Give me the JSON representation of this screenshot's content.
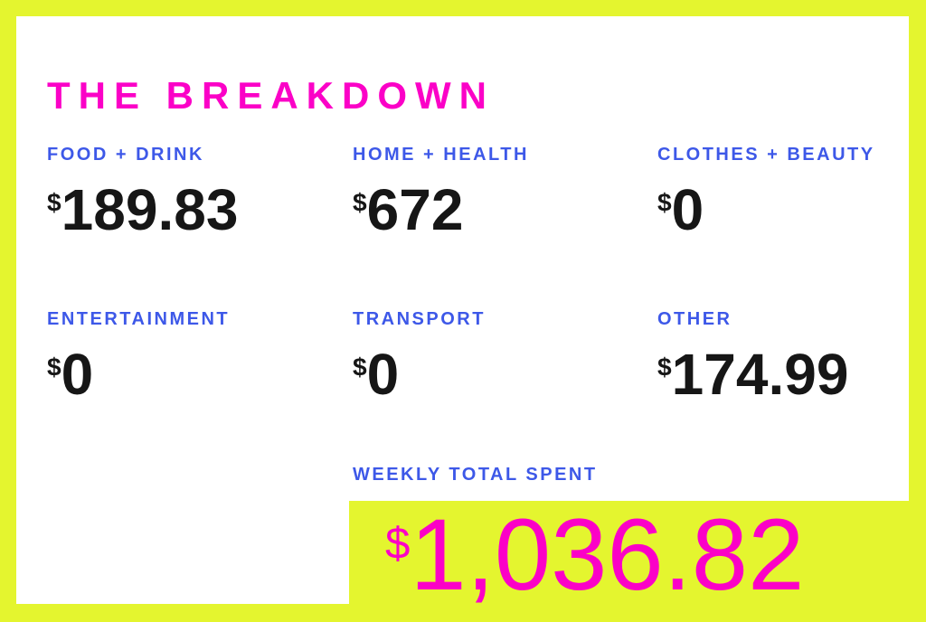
{
  "page": {
    "title": "THE BREAKDOWN"
  },
  "colors": {
    "background_yellow": "#e4f52f",
    "card_white": "#ffffff",
    "accent_magenta": "#fb01c7",
    "label_blue": "#3d58e8",
    "value_black": "#161616"
  },
  "currency_symbol": "$",
  "cells": [
    {
      "label": "FOOD + DRINK",
      "value": "189.83"
    },
    {
      "label": "HOME + HEALTH",
      "value": "672"
    },
    {
      "label": "CLOTHES + BEAUTY",
      "value": "0"
    },
    {
      "label": "ENTERTAINMENT",
      "value": "0"
    },
    {
      "label": "TRANSPORT",
      "value": "0"
    },
    {
      "label": "OTHER",
      "value": "174.99"
    }
  ],
  "total": {
    "label": "WEEKLY TOTAL SPENT",
    "value": "1,036.82"
  },
  "chart_data": {
    "type": "table",
    "title": "THE BREAKDOWN",
    "categories": [
      "FOOD + DRINK",
      "HOME + HEALTH",
      "CLOTHES + BEAUTY",
      "ENTERTAINMENT",
      "TRANSPORT",
      "OTHER"
    ],
    "values": [
      189.83,
      672,
      0,
      0,
      0,
      174.99
    ],
    "total_label": "WEEKLY TOTAL SPENT",
    "total": 1036.82,
    "currency": "$",
    "layout": "2 rows x 3 columns grid of category/value pairs, total highlighted on yellow block bottom-right"
  }
}
